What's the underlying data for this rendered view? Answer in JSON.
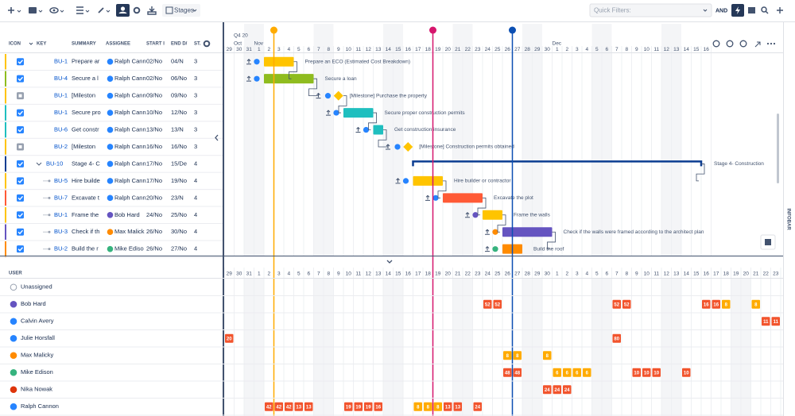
{
  "toolbar": {
    "view": "Stages",
    "quick_filters": "Quick Filters:",
    "operator": "AND"
  },
  "table": {
    "columns": [
      "ICON",
      "KEY",
      "SUMMARY",
      "ASSIGNEE",
      "START I",
      "END D/",
      "ST."
    ],
    "rows": [
      {
        "key": "BU-1",
        "summary": "Prepare ar",
        "assignee": "Ralph Cann",
        "start": "02/No",
        "end": "04/N",
        "status": 3,
        "bar_label": "Prepare an ECO (Estimated Cost Breakdown)"
      },
      {
        "key": "BU-4",
        "summary": "Secure a l",
        "assignee": "Ralph Cann",
        "start": "02/No",
        "end": "06/No",
        "status": 3,
        "bar_label": "Secure a loan"
      },
      {
        "key": "BU-1",
        "summary": "[Mileston",
        "assignee": "Ralph Cann",
        "start": "09/No",
        "end": "09/No",
        "status": 3,
        "bar_label": "[Milestone] Purchase the property"
      },
      {
        "key": "BU-1",
        "summary": "Secure pro",
        "assignee": "Ralph Cann",
        "start": "10/No",
        "end": "12/No",
        "status": 3,
        "bar_label": "Secure proper construction permits"
      },
      {
        "key": "BU-6",
        "summary": "Get constr",
        "assignee": "Ralph Cann",
        "start": "13/No",
        "end": "13/N",
        "status": 3,
        "bar_label": "Get construction insurance"
      },
      {
        "key": "BU-2",
        "summary": "[Mileston",
        "assignee": "Ralph Cann",
        "start": "16/No",
        "end": "16/No",
        "status": 3,
        "bar_label": "[Milestone] Construction permits obtained"
      },
      {
        "key": "BU-10",
        "summary": "Stage 4- C",
        "assignee": "Ralph Cann",
        "start": "17/No",
        "end": "15/De",
        "status": 4,
        "bar_label": "Stage 4- Construction"
      },
      {
        "key": "BU-5",
        "summary": "Hire builde",
        "assignee": "Ralph Cann",
        "start": "17/No",
        "end": "19/No",
        "status": 4,
        "bar_label": "Hire builder or contractor"
      },
      {
        "key": "BU-7",
        "summary": "Excavate t",
        "assignee": "Ralph Cann",
        "start": "20/No",
        "end": "23/N",
        "status": 4,
        "bar_label": "Excavate the plot"
      },
      {
        "key": "BU-1",
        "summary": "Frame the",
        "assignee": "Bob Hard",
        "start": "24/No",
        "end": "25/No",
        "status": 4,
        "bar_label": "Frame the walls"
      },
      {
        "key": "BU-3",
        "summary": "Check if th",
        "assignee": "Max Malick",
        "start": "26/No",
        "end": "30/No",
        "status": 4,
        "bar_label": "Check if the walls were framed according to the architect plan"
      },
      {
        "key": "BU-2",
        "summary": "Build the r",
        "assignee": "Mike Ediso",
        "start": "26/No",
        "end": "27/No",
        "status": 4,
        "bar_label": "Build the roof"
      }
    ]
  },
  "timeline": {
    "quarter": "Q4 20",
    "months": [
      "Oct",
      "Nov",
      "Dec"
    ],
    "days": [
      29,
      30,
      31,
      1,
      2,
      3,
      4,
      5,
      6,
      7,
      8,
      9,
      10,
      11,
      12,
      13,
      14,
      15,
      16,
      17,
      18,
      19,
      20,
      21,
      22,
      23,
      24,
      25,
      26,
      27,
      28,
      29,
      30,
      1,
      2,
      3,
      4,
      5,
      6,
      7,
      8,
      9,
      10,
      11,
      12,
      13,
      14,
      15,
      16
    ]
  },
  "sidebar": "INFOBAR",
  "workload": {
    "header": "USER",
    "days": [
      29,
      30,
      31,
      1,
      2,
      3,
      4,
      5,
      6,
      7,
      8,
      9,
      10,
      11,
      12,
      13,
      14,
      15,
      16,
      17,
      18,
      19,
      20,
      21,
      22,
      23,
      24,
      25,
      26,
      27,
      28,
      29,
      30,
      1,
      2,
      3,
      4,
      5,
      6,
      7,
      8,
      9,
      10,
      11,
      12,
      13,
      14,
      15,
      16,
      17,
      18,
      19,
      20,
      21,
      22,
      23
    ],
    "users": [
      {
        "name": "Unassigned",
        "cells": []
      },
      {
        "name": "Bob Hard",
        "cells": [
          {
            "value": 52,
            "color": "#f2542d"
          },
          {
            "value": 52,
            "color": "#f2542d"
          },
          {
            "value": 52,
            "color": "#f2542d"
          },
          {
            "value": 52,
            "color": "#f2542d"
          },
          {
            "value": 16,
            "color": "#f2542d"
          },
          {
            "value": 16,
            "color": "#f2542d"
          },
          {
            "value": 8,
            "color": "#ffab00"
          },
          {
            "value": 8,
            "color": "#ffab00"
          }
        ]
      },
      {
        "name": "Calvin Avery",
        "cells": [
          {
            "value": 11,
            "color": "#f2542d"
          },
          {
            "value": 11,
            "color": "#f2542d"
          }
        ]
      },
      {
        "name": "Julie Horsfall",
        "cells": [
          {
            "value": 20,
            "color": "#f2542d"
          },
          {
            "value": 80,
            "color": "#f2542d"
          }
        ]
      },
      {
        "name": "Max Malicky",
        "cells": [
          {
            "value": 8,
            "color": "#ffab00"
          },
          {
            "value": 8,
            "color": "#ffab00"
          },
          {
            "value": 8,
            "color": "#ffab00"
          }
        ]
      },
      {
        "name": "Mike Edison",
        "cells": [
          {
            "value": 48,
            "color": "#f2542d"
          },
          {
            "value": 48,
            "color": "#f2542d"
          },
          {
            "value": 6,
            "color": "#ffab00"
          },
          {
            "value": 6,
            "color": "#ffab00"
          },
          {
            "value": 6,
            "color": "#ffab00"
          },
          {
            "value": 6,
            "color": "#ffab00"
          },
          {
            "value": 10,
            "color": "#f2542d"
          },
          {
            "value": 10,
            "color": "#f2542d"
          },
          {
            "value": 10,
            "color": "#f2542d"
          },
          {
            "value": 10,
            "color": "#f2542d"
          }
        ]
      },
      {
        "name": "Nika Nowak",
        "cells": [
          {
            "value": 24,
            "color": "#f2542d"
          },
          {
            "value": 24,
            "color": "#f2542d"
          },
          {
            "value": 24,
            "color": "#f2542d"
          }
        ]
      },
      {
        "name": "Ralph Cannon",
        "cells": [
          {
            "value": 42,
            "color": "#f2542d"
          },
          {
            "value": 42,
            "color": "#f2542d"
          },
          {
            "value": 42,
            "color": "#f2542d"
          },
          {
            "value": 13,
            "color": "#f2542d"
          },
          {
            "value": 13,
            "color": "#f2542d"
          },
          {
            "value": 19,
            "color": "#f2542d"
          },
          {
            "value": 19,
            "color": "#f2542d"
          },
          {
            "value": 19,
            "color": "#f2542d"
          },
          {
            "value": 16,
            "color": "#f2542d"
          },
          {
            "value": 8,
            "color": "#ffab00"
          },
          {
            "value": 8,
            "color": "#ffab00"
          },
          {
            "value": 8,
            "color": "#ffab00"
          },
          {
            "value": 13,
            "color": "#f2542d"
          },
          {
            "value": 13,
            "color": "#f2542d"
          },
          {
            "value": 24,
            "color": "#f2542d"
          }
        ]
      }
    ]
  }
}
